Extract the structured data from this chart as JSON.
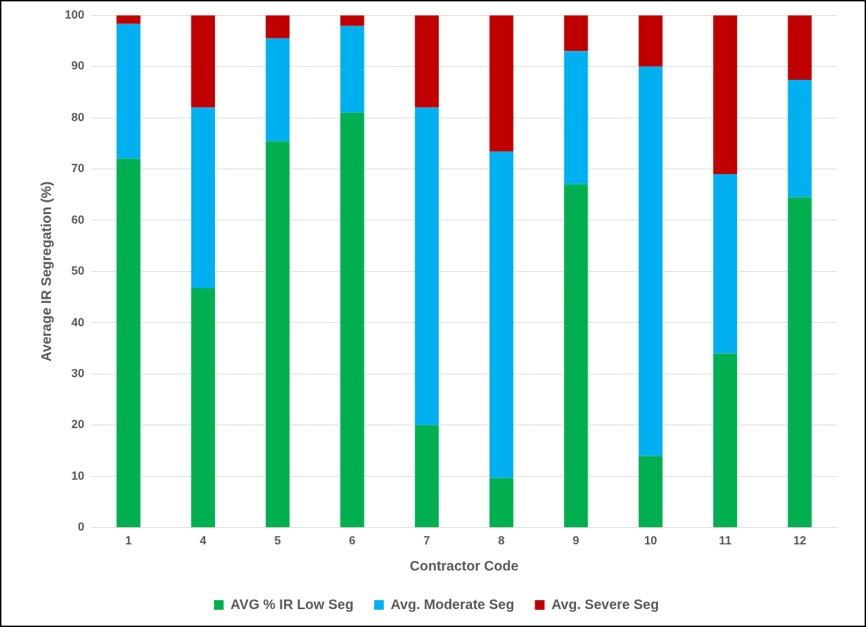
{
  "chart_data": {
    "type": "bar",
    "stacked": true,
    "xlabel": "Contractor Code",
    "ylabel": "Average IR Segregation (%)",
    "categories": [
      "1",
      "4",
      "5",
      "6",
      "7",
      "8",
      "9",
      "10",
      "11",
      "12"
    ],
    "series": [
      {
        "name": "AVG % IR Low Seg",
        "color": "#00b050",
        "values": [
          72,
          46.7,
          75.4,
          81,
          20,
          9.7,
          67,
          14,
          34,
          64.5
        ]
      },
      {
        "name": "Avg. Moderate Seg",
        "color": "#00b0f0",
        "values": [
          26.3,
          35.3,
          20.1,
          16.9,
          62,
          63.7,
          26,
          76,
          35,
          22.9
        ]
      },
      {
        "name": "Avg. Severe Seg",
        "color": "#c00000",
        "values": [
          1.7,
          18,
          4.5,
          2.1,
          18,
          26.6,
          7,
          10,
          31,
          12.6
        ]
      }
    ],
    "ylim": [
      0,
      100
    ],
    "yticks": [
      0,
      10,
      20,
      30,
      40,
      50,
      60,
      70,
      80,
      90,
      100
    ],
    "grid": "y",
    "legend": "bottom"
  }
}
